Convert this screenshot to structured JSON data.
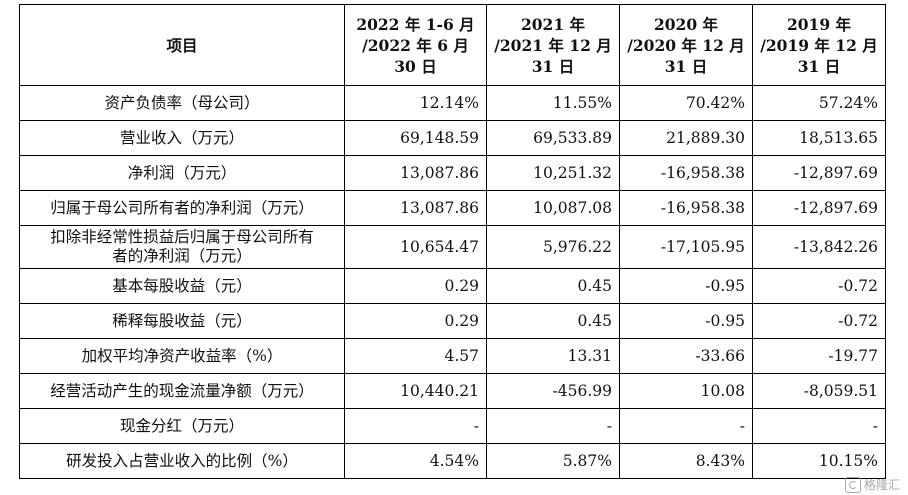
{
  "table": {
    "header": {
      "item": "项目",
      "cols": [
        [
          "2022 年 1-6 月",
          "/2022 年 6 月",
          "30 日"
        ],
        [
          "2021 年",
          "/2021 年 12 月",
          "31 日"
        ],
        [
          "2020 年",
          "/2020 年 12 月",
          "31 日"
        ],
        [
          "2019 年",
          "/2019 年 12 月",
          "31 日"
        ]
      ]
    },
    "rows": [
      {
        "label": "资产负债率（母公司）",
        "values": [
          "12.14%",
          "11.55%",
          "70.42%",
          "57.24%"
        ]
      },
      {
        "label": "营业收入（万元）",
        "values": [
          "69,148.59",
          "69,533.89",
          "21,889.30",
          "18,513.65"
        ]
      },
      {
        "label": "净利润（万元）",
        "values": [
          "13,087.86",
          "10,251.32",
          "-16,958.38",
          "-12,897.69"
        ]
      },
      {
        "label": "归属于母公司所有者的净利润（万元）",
        "values": [
          "13,087.86",
          "10,087.08",
          "-16,958.38",
          "-12,897.69"
        ]
      },
      {
        "label": "扣除非经常性损益后归属于母公司所有者的净利润（万元）",
        "label_lines": [
          "扣除非经常性损益后归属于母公司所有",
          "者的净利润（万元）"
        ],
        "values": [
          "10,654.47",
          "5,976.22",
          "-17,105.95",
          "-13,842.26"
        ]
      },
      {
        "label": "基本每股收益（元）",
        "values": [
          "0.29",
          "0.45",
          "-0.95",
          "-0.72"
        ]
      },
      {
        "label": "稀释每股收益（元）",
        "values": [
          "0.29",
          "0.45",
          "-0.95",
          "-0.72"
        ]
      },
      {
        "label": "加权平均净资产收益率（%）",
        "values": [
          "4.57",
          "13.31",
          "-33.66",
          "-19.77"
        ]
      },
      {
        "label": "经营活动产生的现金流量净额（万元）",
        "values": [
          "10,440.21",
          "-456.99",
          "10.08",
          "-8,059.51"
        ]
      },
      {
        "label": "现金分红（万元）",
        "values": [
          "-",
          "-",
          "-",
          "-"
        ]
      },
      {
        "label": "研发投入占营业收入的比例（%）",
        "values": [
          "4.54%",
          "5.87%",
          "8.43%",
          "10.15%"
        ]
      }
    ]
  },
  "watermark": {
    "text": "格隆汇",
    "icon": "gelonghui-logo-icon"
  }
}
